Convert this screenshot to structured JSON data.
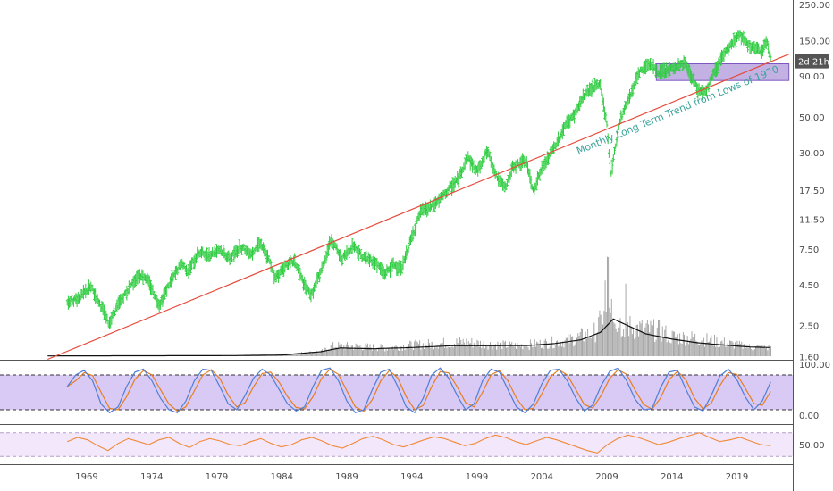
{
  "chart_data": [
    {
      "type": "ohlc",
      "scale": "log",
      "panel": "price",
      "x_axis_labels": [
        "1969",
        "1974",
        "1979",
        "1984",
        "1989",
        "1994",
        "1999",
        "2004",
        "2009",
        "2014",
        "2019"
      ],
      "y_axis_labels": [
        "250.00",
        "150.00",
        "90.00",
        "50.00",
        "30.00",
        "17.50",
        "11.50",
        "7.50",
        "4.50",
        "2.50",
        "1.60"
      ],
      "ylim": [
        1.6,
        250
      ],
      "xlim": [
        1964.5,
        2023.5
      ],
      "colors": {
        "up_bar": "#2ecc40",
        "trend_line": "#e74c3c",
        "zone": "#b39ddb",
        "volume": "#9e9e9e",
        "volume_ma": "#111111"
      },
      "price_series": {
        "name": "",
        "points": [
          [
            1967.5,
            3.5
          ],
          [
            1968.5,
            3.8
          ],
          [
            1969.3,
            4.4
          ],
          [
            1970.3,
            3.1
          ],
          [
            1970.7,
            2.6
          ],
          [
            1971.5,
            3.5
          ],
          [
            1972.5,
            4.6
          ],
          [
            1973.0,
            5.3
          ],
          [
            1973.6,
            5.0
          ],
          [
            1974.6,
            3.4
          ],
          [
            1975.3,
            4.5
          ],
          [
            1976.3,
            6.2
          ],
          [
            1976.8,
            5.5
          ],
          [
            1977.6,
            7.2
          ],
          [
            1978.5,
            7.0
          ],
          [
            1979.2,
            7.6
          ],
          [
            1980.0,
            6.6
          ],
          [
            1980.8,
            7.8
          ],
          [
            1981.7,
            7.1
          ],
          [
            1982.3,
            8.4
          ],
          [
            1983.0,
            6.5
          ],
          [
            1983.5,
            5.0
          ],
          [
            1984.4,
            6.1
          ],
          [
            1985.0,
            6.3
          ],
          [
            1985.8,
            4.4
          ],
          [
            1986.3,
            3.9
          ],
          [
            1987.3,
            6.4
          ],
          [
            1987.8,
            8.8
          ],
          [
            1988.6,
            6.5
          ],
          [
            1989.5,
            8.0
          ],
          [
            1990.2,
            6.8
          ],
          [
            1991.2,
            6.3
          ],
          [
            1991.9,
            5.3
          ],
          [
            1992.6,
            6.1
          ],
          [
            1993.2,
            5.6
          ],
          [
            1994.0,
            9.0
          ],
          [
            1994.7,
            13.0
          ],
          [
            1995.5,
            13.8
          ],
          [
            1996.5,
            16.5
          ],
          [
            1997.6,
            21.0
          ],
          [
            1998.3,
            28.5
          ],
          [
            1999.0,
            23.0
          ],
          [
            1999.8,
            31.0
          ],
          [
            2000.6,
            21.0
          ],
          [
            2001.2,
            18.0
          ],
          [
            2001.8,
            25.0
          ],
          [
            2002.8,
            27.0
          ],
          [
            2003.3,
            17.5
          ],
          [
            2004.0,
            24.0
          ],
          [
            2005.0,
            33.0
          ],
          [
            2005.8,
            45.0
          ],
          [
            2006.5,
            52.0
          ],
          [
            2007.3,
            70.0
          ],
          [
            2007.9,
            77.0
          ],
          [
            2008.5,
            80.0
          ],
          [
            2009.0,
            45.0
          ],
          [
            2009.3,
            22.0
          ],
          [
            2010.0,
            48.0
          ],
          [
            2010.8,
            70.0
          ],
          [
            2011.5,
            95.0
          ],
          [
            2012.2,
            110.0
          ],
          [
            2013.0,
            95.0
          ],
          [
            2014.0,
            100.0
          ],
          [
            2015.0,
            110.0
          ],
          [
            2016.0,
            75.0
          ],
          [
            2016.6,
            72.0
          ],
          [
            2017.6,
            110.0
          ],
          [
            2018.5,
            140.0
          ],
          [
            2019.2,
            165.0
          ],
          [
            2019.7,
            145.0
          ],
          [
            2020.3,
            135.0
          ],
          [
            2020.9,
            130.0
          ],
          [
            2021.3,
            150.0
          ],
          [
            2021.6,
            115.0
          ]
        ]
      },
      "trend_line": {
        "label": "Monthly Long Term Trend from Lows of 1970",
        "from": [
          1966.0,
          1.55
        ],
        "to": [
          2023.0,
          124.0
        ]
      },
      "resistance_zone": {
        "x": [
          2012.8,
          2023.0
        ],
        "y": [
          85,
          108
        ]
      },
      "price_badge": {
        "text": "2d 21h",
        "y": 112
      },
      "volume": {
        "max_value": 6.0,
        "points": [
          [
            1966,
            0.02
          ],
          [
            1970,
            0.03
          ],
          [
            1975,
            0.04
          ],
          [
            1980,
            0.05
          ],
          [
            1983,
            0.07
          ],
          [
            1985,
            0.18
          ],
          [
            1987,
            0.3
          ],
          [
            1988,
            0.7
          ],
          [
            1990,
            0.65
          ],
          [
            1992,
            0.55
          ],
          [
            1994,
            0.75
          ],
          [
            1996,
            0.85
          ],
          [
            1998,
            0.95
          ],
          [
            2000,
            0.8
          ],
          [
            2002,
            0.7
          ],
          [
            2004,
            0.85
          ],
          [
            2006,
            1.05
          ],
          [
            2008,
            1.6
          ],
          [
            2009,
            2.9
          ],
          [
            2010,
            2.2
          ],
          [
            2011,
            1.9
          ],
          [
            2012,
            1.8
          ],
          [
            2013,
            1.7
          ],
          [
            2014,
            1.3
          ],
          [
            2016,
            1.2
          ],
          [
            2018,
            0.9
          ],
          [
            2020,
            0.6
          ],
          [
            2021.6,
            0.55
          ]
        ],
        "ma_points": [
          [
            1966,
            0.02
          ],
          [
            1980,
            0.04
          ],
          [
            1984,
            0.08
          ],
          [
            1987,
            0.3
          ],
          [
            1988.5,
            0.55
          ],
          [
            1991,
            0.5
          ],
          [
            1994,
            0.58
          ],
          [
            1997,
            0.7
          ],
          [
            2000,
            0.7
          ],
          [
            2003,
            0.72
          ],
          [
            2005,
            0.85
          ],
          [
            2007,
            1.1
          ],
          [
            2008.5,
            1.6
          ],
          [
            2009.5,
            2.5
          ],
          [
            2010.5,
            2.1
          ],
          [
            2012,
            1.5
          ],
          [
            2014,
            1.15
          ],
          [
            2016,
            0.9
          ],
          [
            2018,
            0.75
          ],
          [
            2020,
            0.62
          ],
          [
            2021.6,
            0.58
          ]
        ]
      }
    },
    {
      "type": "line",
      "panel": "stochastic",
      "y_axis_labels": [
        "100.00",
        "0.00"
      ],
      "ylim": [
        0,
        100
      ],
      "bands": [
        20,
        80
      ],
      "colors": {
        "band_fill": "#d9c9f5",
        "k_line": "#4f7fd6",
        "d_line": "#e67e22"
      },
      "series": [
        {
          "name": "",
          "values": [
            60,
            80,
            88,
            70,
            30,
            15,
            25,
            60,
            85,
            90,
            70,
            40,
            20,
            15,
            35,
            70,
            90,
            88,
            60,
            30,
            20,
            45,
            75,
            90,
            80,
            55,
            30,
            18,
            25,
            60,
            88,
            92,
            70,
            35,
            15,
            20,
            55,
            85,
            90,
            60,
            25,
            15,
            40,
            80,
            92,
            75,
            45,
            20,
            30,
            70,
            90,
            85,
            55,
            25,
            15,
            30,
            65,
            88,
            90,
            70,
            40,
            18,
            28,
            62,
            86,
            92,
            70,
            38,
            20,
            22,
            58,
            85,
            88,
            55,
            25,
            18,
            45,
            78,
            90,
            72,
            42,
            20,
            35,
            68
          ]
        }
      ]
    },
    {
      "type": "line",
      "panel": "rsi",
      "y_axis_labels": [
        "50.00"
      ],
      "ylim": [
        20,
        80
      ],
      "bands": [
        30,
        70
      ],
      "colors": {
        "band_fill": "#f3e7fb",
        "line": "#f08a3a"
      },
      "series": [
        {
          "name": "",
          "values": [
            55,
            62,
            58,
            48,
            40,
            52,
            60,
            55,
            50,
            58,
            62,
            52,
            45,
            55,
            60,
            56,
            50,
            48,
            55,
            60,
            52,
            46,
            50,
            58,
            62,
            56,
            48,
            44,
            52,
            60,
            64,
            58,
            50,
            46,
            52,
            58,
            63,
            60,
            54,
            48,
            52,
            60,
            66,
            62,
            55,
            50,
            56,
            62,
            58,
            52,
            46,
            40,
            36,
            50,
            60,
            66,
            62,
            56,
            50,
            54,
            60,
            65,
            70,
            62,
            55,
            58,
            62,
            56,
            50,
            48
          ]
        }
      ]
    }
  ]
}
